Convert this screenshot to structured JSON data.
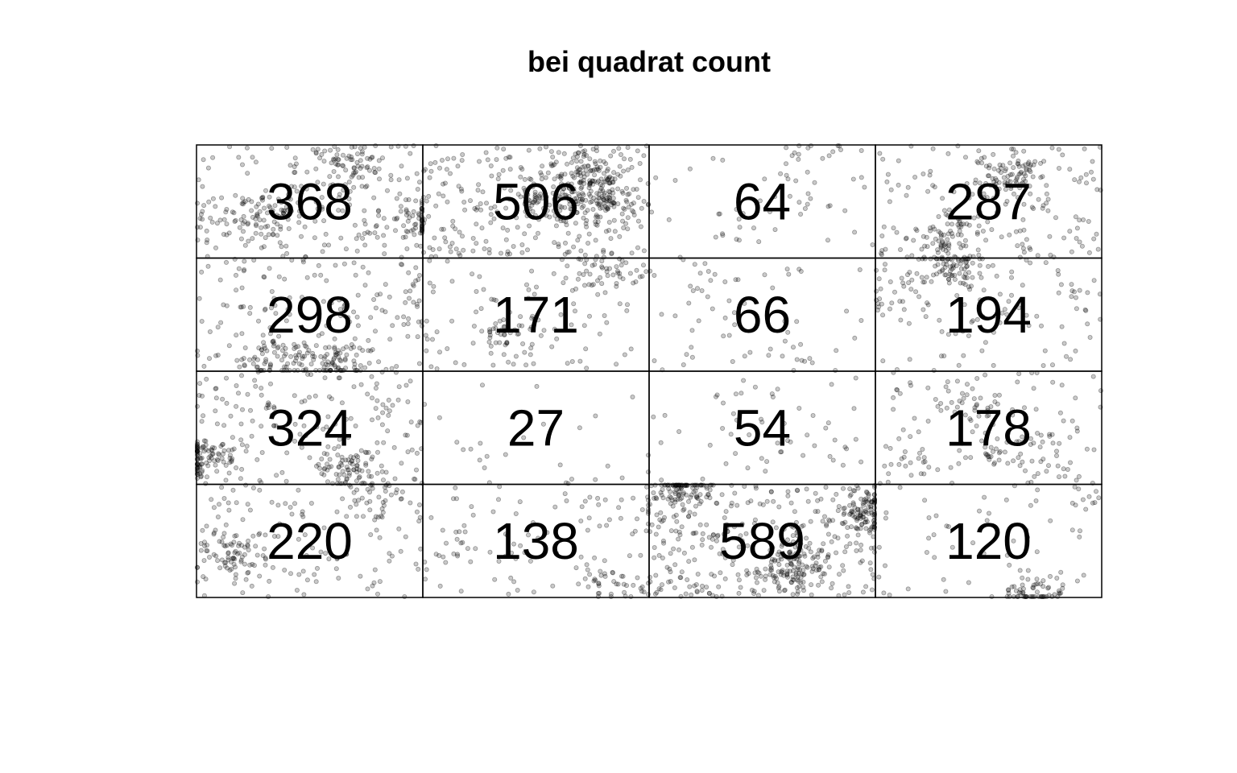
{
  "chart_data": {
    "type": "heatmap",
    "title": "bei quadrat count",
    "subtitle": "",
    "xlabel": "",
    "ylabel": "",
    "grid": true,
    "legend": "none",
    "rows": 4,
    "cols": 4,
    "counts": [
      [
        368,
        506,
        64,
        287
      ],
      [
        298,
        171,
        66,
        194
      ],
      [
        324,
        27,
        54,
        178
      ],
      [
        220,
        138,
        589,
        120
      ]
    ],
    "point_color": "#000000",
    "point_alpha": 0.35,
    "line_color": "#000000"
  }
}
